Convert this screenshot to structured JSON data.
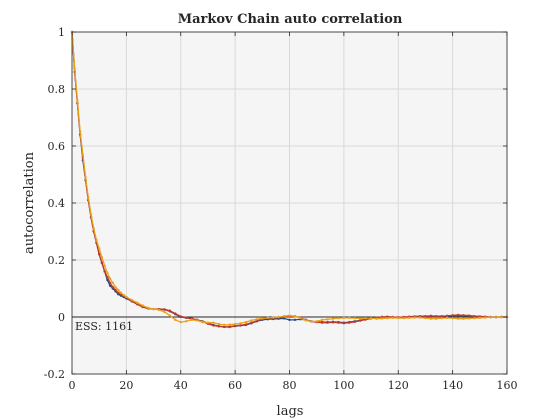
{
  "chart_data": {
    "type": "line",
    "title": "Markov Chain auto correlation",
    "xlabel": "lags",
    "ylabel": "autocorrelation",
    "xlim": [
      0,
      160
    ],
    "ylim": [
      -0.2,
      1
    ],
    "xticks": [
      0,
      20,
      40,
      60,
      80,
      100,
      120,
      140,
      160
    ],
    "yticks": [
      -0.2,
      0,
      0.2,
      0.4,
      0.6,
      0.8,
      1
    ],
    "xtick_labels": [
      "0",
      "20",
      "40",
      "60",
      "80",
      "100",
      "120",
      "140",
      "160"
    ],
    "ytick_labels": [
      "-0.2",
      "0",
      "0.2",
      "0.4",
      "0.6",
      "0.8",
      "1"
    ],
    "grid": true,
    "reference_line_y": 0,
    "annotation": "ESS: 1161",
    "series": [
      {
        "color": "#2a4a7f",
        "points": [
          [
            0,
            1
          ],
          [
            1,
            0.86
          ],
          [
            2,
            0.75
          ],
          [
            3,
            0.64
          ],
          [
            4,
            0.55
          ],
          [
            5,
            0.48
          ],
          [
            6,
            0.41
          ],
          [
            7,
            0.35
          ],
          [
            8,
            0.3
          ],
          [
            9,
            0.26
          ],
          [
            10,
            0.22
          ],
          [
            11,
            0.19
          ],
          [
            12,
            0.16
          ],
          [
            13,
            0.13
          ],
          [
            14,
            0.11
          ],
          [
            15,
            0.1
          ],
          [
            16,
            0.09
          ],
          [
            17,
            0.08
          ],
          [
            18,
            0.075
          ],
          [
            19,
            0.07
          ],
          [
            20,
            0.065
          ],
          [
            22,
            0.055
          ],
          [
            24,
            0.045
          ],
          [
            26,
            0.035
          ],
          [
            28,
            0.03
          ],
          [
            30,
            0.028
          ],
          [
            32,
            0.027
          ],
          [
            34,
            0.026
          ],
          [
            36,
            0.02
          ],
          [
            38,
            0.01
          ],
          [
            40,
            0.0
          ],
          [
            42,
            -0.003
          ],
          [
            44,
            -0.006
          ],
          [
            46,
            -0.01
          ],
          [
            48,
            -0.015
          ],
          [
            50,
            -0.022
          ],
          [
            52,
            -0.028
          ],
          [
            54,
            -0.032
          ],
          [
            56,
            -0.035
          ],
          [
            58,
            -0.035
          ],
          [
            60,
            -0.032
          ],
          [
            62,
            -0.03
          ],
          [
            64,
            -0.028
          ],
          [
            66,
            -0.022
          ],
          [
            68,
            -0.015
          ],
          [
            70,
            -0.01
          ],
          [
            72,
            -0.008
          ],
          [
            74,
            -0.007
          ],
          [
            76,
            -0.006
          ],
          [
            78,
            -0.005
          ],
          [
            80,
            -0.01
          ],
          [
            82,
            -0.01
          ],
          [
            84,
            -0.008
          ],
          [
            86,
            -0.01
          ],
          [
            88,
            -0.015
          ],
          [
            90,
            -0.017
          ],
          [
            92,
            -0.018
          ],
          [
            94,
            -0.018
          ],
          [
            96,
            -0.017
          ],
          [
            98,
            -0.018
          ],
          [
            100,
            -0.02
          ],
          [
            102,
            -0.018
          ],
          [
            104,
            -0.015
          ],
          [
            106,
            -0.012
          ],
          [
            108,
            -0.008
          ],
          [
            110,
            -0.005
          ],
          [
            112,
            -0.002
          ],
          [
            114,
            0.0
          ],
          [
            116,
            0.0
          ],
          [
            118,
            -0.001
          ],
          [
            120,
            -0.002
          ],
          [
            122,
            -0.001
          ],
          [
            124,
            0.0
          ],
          [
            126,
            0.001
          ],
          [
            128,
            0.002
          ],
          [
            130,
            0.002
          ],
          [
            132,
            0.003
          ],
          [
            134,
            0.002
          ],
          [
            136,
            0.002
          ],
          [
            138,
            0.003
          ],
          [
            140,
            0.004
          ],
          [
            142,
            0.005
          ],
          [
            144,
            0.004
          ],
          [
            146,
            0.003
          ],
          [
            148,
            0.002
          ],
          [
            150,
            0.001
          ],
          [
            152,
            0.0
          ],
          [
            154,
            -0.001
          ],
          [
            156,
            -0.001
          ],
          [
            158,
            0.0
          ],
          [
            160,
            0.0
          ]
        ]
      },
      {
        "color": "#c0392b",
        "points": [
          [
            0,
            1
          ],
          [
            1,
            0.86
          ],
          [
            2,
            0.75
          ],
          [
            3,
            0.64
          ],
          [
            4,
            0.56
          ],
          [
            5,
            0.48
          ],
          [
            6,
            0.41
          ],
          [
            7,
            0.35
          ],
          [
            8,
            0.3
          ],
          [
            9,
            0.26
          ],
          [
            10,
            0.22
          ],
          [
            11,
            0.19
          ],
          [
            12,
            0.16
          ],
          [
            13,
            0.14
          ],
          [
            14,
            0.12
          ],
          [
            15,
            0.105
          ],
          [
            16,
            0.095
          ],
          [
            17,
            0.085
          ],
          [
            18,
            0.08
          ],
          [
            19,
            0.075
          ],
          [
            20,
            0.07
          ],
          [
            22,
            0.055
          ],
          [
            24,
            0.045
          ],
          [
            26,
            0.035
          ],
          [
            28,
            0.03
          ],
          [
            30,
            0.028
          ],
          [
            32,
            0.028
          ],
          [
            34,
            0.027
          ],
          [
            36,
            0.022
          ],
          [
            38,
            0.012
          ],
          [
            40,
            0.002
          ],
          [
            42,
            -0.002
          ],
          [
            44,
            -0.005
          ],
          [
            46,
            -0.01
          ],
          [
            48,
            -0.016
          ],
          [
            50,
            -0.024
          ],
          [
            52,
            -0.03
          ],
          [
            54,
            -0.033
          ],
          [
            56,
            -0.035
          ],
          [
            58,
            -0.034
          ],
          [
            60,
            -0.031
          ],
          [
            62,
            -0.029
          ],
          [
            64,
            -0.026
          ],
          [
            66,
            -0.02
          ],
          [
            68,
            -0.013
          ],
          [
            70,
            -0.007
          ],
          [
            72,
            -0.004
          ],
          [
            74,
            -0.003
          ],
          [
            76,
            -0.002
          ],
          [
            78,
            0.0
          ],
          [
            80,
            0.002
          ],
          [
            82,
            0.003
          ],
          [
            84,
            -0.003
          ],
          [
            86,
            -0.01
          ],
          [
            88,
            -0.016
          ],
          [
            90,
            -0.018
          ],
          [
            92,
            -0.02
          ],
          [
            94,
            -0.02
          ],
          [
            96,
            -0.019
          ],
          [
            98,
            -0.02
          ],
          [
            100,
            -0.022
          ],
          [
            102,
            -0.02
          ],
          [
            104,
            -0.017
          ],
          [
            106,
            -0.013
          ],
          [
            108,
            -0.009
          ],
          [
            110,
            -0.005
          ],
          [
            112,
            -0.002
          ],
          [
            114,
            0.0
          ],
          [
            116,
            0.001
          ],
          [
            118,
            0.0
          ],
          [
            120,
            -0.001
          ],
          [
            122,
            0.0
          ],
          [
            124,
            0.001
          ],
          [
            126,
            0.002
          ],
          [
            128,
            0.003
          ],
          [
            130,
            0.003
          ],
          [
            132,
            0.004
          ],
          [
            134,
            0.003
          ],
          [
            136,
            0.003
          ],
          [
            138,
            0.004
          ],
          [
            140,
            0.006
          ],
          [
            142,
            0.007
          ],
          [
            144,
            0.006
          ],
          [
            146,
            0.005
          ],
          [
            148,
            0.003
          ],
          [
            150,
            0.002
          ],
          [
            152,
            0.001
          ],
          [
            154,
            0.0
          ],
          [
            156,
            0.0
          ],
          [
            158,
            0.0
          ],
          [
            160,
            0.0
          ]
        ]
      },
      {
        "color": "#e8a21a",
        "points": [
          [
            0,
            1
          ],
          [
            1,
            0.87
          ],
          [
            2,
            0.76
          ],
          [
            3,
            0.65
          ],
          [
            4,
            0.57
          ],
          [
            5,
            0.49
          ],
          [
            6,
            0.42
          ],
          [
            7,
            0.36
          ],
          [
            8,
            0.31
          ],
          [
            9,
            0.27
          ],
          [
            10,
            0.24
          ],
          [
            11,
            0.21
          ],
          [
            12,
            0.18
          ],
          [
            13,
            0.155
          ],
          [
            14,
            0.135
          ],
          [
            15,
            0.12
          ],
          [
            16,
            0.105
          ],
          [
            17,
            0.095
          ],
          [
            18,
            0.085
          ],
          [
            19,
            0.077
          ],
          [
            20,
            0.07
          ],
          [
            22,
            0.06
          ],
          [
            24,
            0.05
          ],
          [
            26,
            0.04
          ],
          [
            28,
            0.032
          ],
          [
            30,
            0.028
          ],
          [
            32,
            0.025
          ],
          [
            34,
            0.018
          ],
          [
            36,
            0.005
          ],
          [
            38,
            -0.01
          ],
          [
            40,
            -0.018
          ],
          [
            42,
            -0.015
          ],
          [
            44,
            -0.01
          ],
          [
            46,
            -0.012
          ],
          [
            48,
            -0.018
          ],
          [
            50,
            -0.02
          ],
          [
            52,
            -0.02
          ],
          [
            54,
            -0.025
          ],
          [
            56,
            -0.028
          ],
          [
            58,
            -0.027
          ],
          [
            60,
            -0.025
          ],
          [
            62,
            -0.022
          ],
          [
            64,
            -0.018
          ],
          [
            66,
            -0.012
          ],
          [
            68,
            -0.008
          ],
          [
            70,
            -0.005
          ],
          [
            72,
            -0.003
          ],
          [
            74,
            -0.002
          ],
          [
            76,
            0.0
          ],
          [
            78,
            0.003
          ],
          [
            80,
            0.005
          ],
          [
            82,
            0.002
          ],
          [
            84,
            -0.004
          ],
          [
            86,
            -0.012
          ],
          [
            88,
            -0.016
          ],
          [
            90,
            -0.015
          ],
          [
            92,
            -0.01
          ],
          [
            94,
            -0.008
          ],
          [
            96,
            -0.006
          ],
          [
            98,
            -0.004
          ],
          [
            100,
            -0.003
          ],
          [
            102,
            -0.003
          ],
          [
            104,
            -0.004
          ],
          [
            106,
            -0.005
          ],
          [
            108,
            -0.004
          ],
          [
            110,
            -0.004
          ],
          [
            112,
            -0.006
          ],
          [
            114,
            -0.005
          ],
          [
            116,
            -0.004
          ],
          [
            118,
            -0.003
          ],
          [
            120,
            -0.004
          ],
          [
            122,
            -0.004
          ],
          [
            124,
            -0.003
          ],
          [
            126,
            -0.002
          ],
          [
            128,
            -0.002
          ],
          [
            130,
            -0.004
          ],
          [
            132,
            -0.006
          ],
          [
            134,
            -0.006
          ],
          [
            136,
            -0.004
          ],
          [
            138,
            -0.003
          ],
          [
            140,
            -0.004
          ],
          [
            142,
            -0.006
          ],
          [
            144,
            -0.006
          ],
          [
            146,
            -0.005
          ],
          [
            148,
            -0.004
          ],
          [
            150,
            -0.003
          ],
          [
            152,
            -0.002
          ],
          [
            154,
            -0.001
          ],
          [
            156,
            -0.001
          ],
          [
            158,
            -0.001
          ],
          [
            160,
            0.0
          ]
        ]
      }
    ],
    "reference_color": "#262626"
  }
}
